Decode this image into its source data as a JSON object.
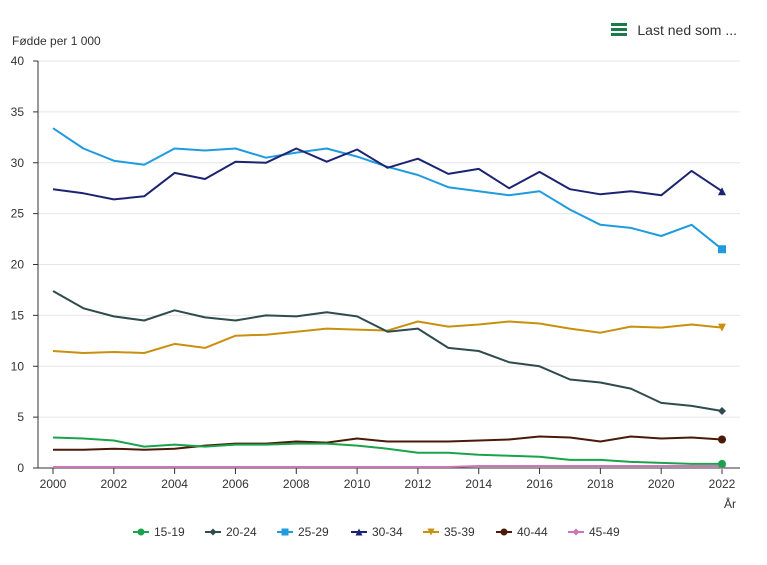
{
  "toolbar": {
    "export_label": "Last ned som ...",
    "export_icon": "menu-icon"
  },
  "colors": {
    "15-19": "#1aa34a",
    "20-24": "#2f4b4f",
    "25-29": "#1f9bde",
    "30-34": "#1c2472",
    "35-39": "#c99010",
    "40-44": "#4a1a08",
    "45-49": "#cc77b5"
  },
  "chart_data": {
    "type": "line",
    "ylabel": "Fødde per 1 000",
    "xlabel": "År",
    "ylim": [
      0,
      40
    ],
    "yticks": [
      "0",
      "5",
      "10",
      "15",
      "20",
      "25",
      "30",
      "35",
      "40"
    ],
    "xticks": [
      "2000",
      "2002",
      "2004",
      "2006",
      "2008",
      "2010",
      "2012",
      "2014",
      "2016",
      "2018",
      "2020",
      "2022"
    ],
    "grid": true,
    "legend_position": "bottom",
    "x": [
      2000,
      2001,
      2002,
      2003,
      2004,
      2005,
      2006,
      2007,
      2008,
      2009,
      2010,
      2011,
      2012,
      2013,
      2014,
      2015,
      2016,
      2017,
      2018,
      2019,
      2020,
      2021,
      2022
    ],
    "series": [
      {
        "name": "15-19",
        "marker": "circle",
        "values": [
          3.0,
          2.9,
          2.7,
          2.1,
          2.3,
          2.1,
          2.3,
          2.3,
          2.4,
          2.4,
          2.2,
          1.9,
          1.5,
          1.5,
          1.3,
          1.2,
          1.1,
          0.8,
          0.8,
          0.6,
          0.5,
          0.4,
          0.4
        ]
      },
      {
        "name": "20-24",
        "marker": "diamond",
        "values": [
          17.4,
          15.7,
          14.9,
          14.5,
          15.5,
          14.8,
          14.5,
          15.0,
          14.9,
          15.3,
          14.9,
          13.4,
          13.7,
          11.8,
          11.5,
          10.4,
          10.0,
          8.7,
          8.4,
          7.8,
          6.4,
          6.1,
          5.6
        ]
      },
      {
        "name": "25-29",
        "marker": "square",
        "values": [
          33.4,
          31.4,
          30.2,
          29.8,
          31.4,
          31.2,
          31.4,
          30.5,
          31.0,
          31.4,
          30.6,
          29.6,
          28.8,
          27.6,
          27.2,
          26.8,
          27.2,
          25.4,
          23.9,
          23.6,
          22.8,
          23.9,
          21.5
        ]
      },
      {
        "name": "30-34",
        "marker": "triangle",
        "values": [
          27.4,
          27.0,
          26.4,
          26.7,
          29.0,
          28.4,
          30.1,
          30.0,
          31.4,
          30.1,
          31.3,
          29.5,
          30.4,
          28.9,
          29.4,
          27.5,
          29.1,
          27.4,
          26.9,
          27.2,
          26.8,
          29.2,
          27.2
        ]
      },
      {
        "name": "35-39",
        "marker": "triangle-down",
        "values": [
          11.5,
          11.3,
          11.4,
          11.3,
          12.2,
          11.8,
          13.0,
          13.1,
          13.4,
          13.7,
          13.6,
          13.5,
          14.4,
          13.9,
          14.1,
          14.4,
          14.2,
          13.7,
          13.3,
          13.9,
          13.8,
          14.1,
          13.8
        ]
      },
      {
        "name": "40-44",
        "marker": "circle",
        "values": [
          1.8,
          1.8,
          1.9,
          1.8,
          1.9,
          2.2,
          2.4,
          2.4,
          2.6,
          2.5,
          2.9,
          2.6,
          2.6,
          2.6,
          2.7,
          2.8,
          3.1,
          3.0,
          2.6,
          3.1,
          2.9,
          3.0,
          2.8
        ]
      },
      {
        "name": "45-49",
        "marker": "diamond",
        "values": [
          0.1,
          0.1,
          0.1,
          0.1,
          0.1,
          0.1,
          0.1,
          0.1,
          0.1,
          0.1,
          0.1,
          0.1,
          0.1,
          0.1,
          0.2,
          0.2,
          0.2,
          0.2,
          0.2,
          0.2,
          0.2,
          0.2,
          0.2
        ]
      }
    ]
  }
}
